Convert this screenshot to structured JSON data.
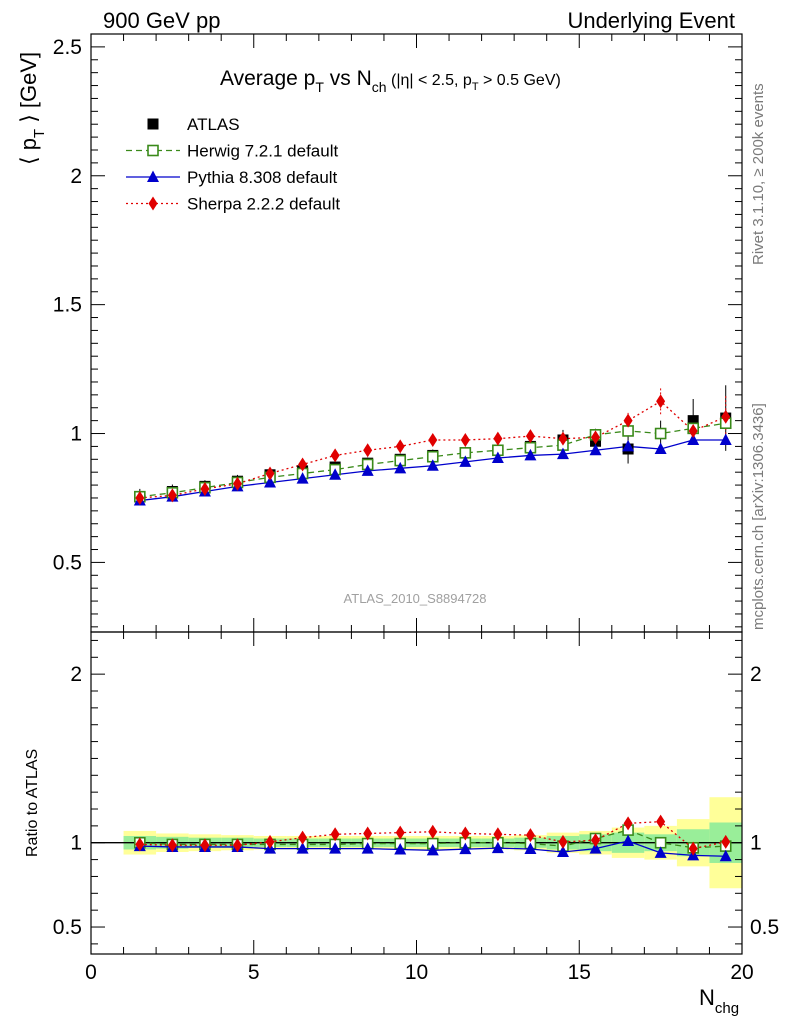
{
  "header": {
    "left": "900 GeV pp",
    "right": "Underlying Event"
  },
  "side_labels": {
    "rivet": "Rivet 3.1.10, ≥ 200k events",
    "mcplots": "mcplots.cern.ch [arXiv:1306.3436]"
  },
  "chart_data": {
    "type": "scatter",
    "title_parts": {
      "a": "Average p",
      "a_sub": "T",
      "b": " vs N",
      "b_sub": "ch",
      "c": " (|η| < 2.5, p",
      "c_sub": "T",
      "d": " > 0.5 GeV)"
    },
    "watermark": "ATLAS_2010_S8894728",
    "ylabel_main": {
      "pre": "⟨ p",
      "sub": "T",
      "post": " ⟩ [GeV]"
    },
    "ylabel_ratio": "Ratio to ATLAS",
    "xlabel": {
      "main": "N",
      "sub": "chg"
    },
    "xlim": [
      0,
      20
    ],
    "ylim_main": [
      0.23,
      2.55
    ],
    "ylim_ratio": [
      0.34,
      2.25
    ],
    "x_ticks": [
      "0",
      "5",
      "10",
      "15",
      "20"
    ],
    "x_tick_values": [
      0,
      5,
      10,
      15,
      20
    ],
    "y_ticks_main": [
      "0.5",
      "1",
      "1.5",
      "2",
      "2.5"
    ],
    "y_tick_values_main": [
      0.5,
      1,
      1.5,
      2,
      2.5
    ],
    "y_ticks_ratio": [
      "0.5",
      "1",
      "2"
    ],
    "y_tick_values_ratio": [
      0.5,
      1,
      2
    ],
    "x": [
      1.5,
      2.5,
      3.5,
      4.5,
      5.5,
      6.5,
      7.5,
      8.5,
      9.5,
      10.5,
      11.5,
      12.5,
      13.5,
      14.5,
      15.5,
      16.5,
      17.5,
      18.5,
      19.5
    ],
    "data_err_inner": [
      0.04,
      0.035,
      0.03,
      0.03,
      0.025,
      0.025,
      0.025,
      0.025,
      0.025,
      0.025,
      0.025,
      0.025,
      0.03,
      0.04,
      0.05,
      0.06,
      0.05,
      0.08,
      0.12
    ],
    "data_err_outer": [
      0.07,
      0.055,
      0.05,
      0.045,
      0.04,
      0.04,
      0.04,
      0.04,
      0.04,
      0.04,
      0.04,
      0.04,
      0.045,
      0.06,
      0.07,
      0.09,
      0.1,
      0.14,
      0.27
    ],
    "series": [
      {
        "name": "ATLAS",
        "marker": "square",
        "color": "#000000",
        "dash": "",
        "values": [
          0.755,
          0.775,
          0.795,
          0.815,
          0.84,
          0.855,
          0.87,
          0.885,
          0.9,
          0.915,
          0.925,
          0.935,
          0.95,
          0.975,
          0.97,
          0.94,
          1.0,
          1.05,
          1.06
        ]
      },
      {
        "name": "Herwig 7.2.1 default",
        "marker": "open-square",
        "color": "#3a8a1a",
        "dash": "6,4",
        "values": [
          0.755,
          0.77,
          0.79,
          0.81,
          0.83,
          0.845,
          0.86,
          0.88,
          0.895,
          0.91,
          0.925,
          0.935,
          0.945,
          0.955,
          0.995,
          1.01,
          1.0,
          1.02,
          1.04
        ]
      },
      {
        "name": "Pythia 8.308 default",
        "marker": "triangle",
        "color": "#0000cc",
        "dash": "",
        "values": [
          0.74,
          0.755,
          0.775,
          0.795,
          0.81,
          0.825,
          0.84,
          0.855,
          0.865,
          0.875,
          0.89,
          0.905,
          0.915,
          0.92,
          0.935,
          0.95,
          0.94,
          0.975,
          0.975
        ]
      },
      {
        "name": "Sherpa 2.2.2 default",
        "marker": "diamond",
        "color": "#e00000",
        "dash": "2,3",
        "values": [
          0.75,
          0.76,
          0.785,
          0.805,
          0.845,
          0.88,
          0.915,
          0.935,
          0.95,
          0.975,
          0.975,
          0.98,
          0.99,
          0.98,
          0.985,
          1.05,
          1.125,
          1.01,
          1.065
        ]
      }
    ],
    "sherpa_err": [
      0,
      0,
      0,
      0,
      0,
      0.01,
      0.01,
      0.01,
      0.01,
      0.01,
      0.01,
      0.01,
      0.01,
      0.01,
      0.02,
      0.03,
      0.05,
      0.04,
      0.08
    ],
    "ratio_series": [
      {
        "name": "Herwig 7.2.1 default",
        "values": [
          1.0,
          0.99,
          0.99,
          0.99,
          0.99,
          0.99,
          0.99,
          0.995,
          0.995,
          0.995,
          1.0,
          1.0,
          0.995,
          0.98,
          1.025,
          1.075,
          1.0,
          0.97,
          0.98
        ]
      },
      {
        "name": "Pythia 8.308 default",
        "values": [
          0.98,
          0.975,
          0.975,
          0.975,
          0.965,
          0.965,
          0.965,
          0.965,
          0.96,
          0.955,
          0.962,
          0.968,
          0.963,
          0.945,
          0.965,
          1.01,
          0.94,
          0.925,
          0.92
        ]
      },
      {
        "name": "Sherpa 2.2.2 default",
        "values": [
          0.99,
          0.985,
          0.985,
          0.985,
          1.005,
          1.03,
          1.05,
          1.055,
          1.06,
          1.065,
          1.055,
          1.05,
          1.045,
          1.005,
          1.015,
          1.115,
          1.125,
          0.965,
          1.005
        ]
      }
    ],
    "legend_position": "top-left"
  }
}
